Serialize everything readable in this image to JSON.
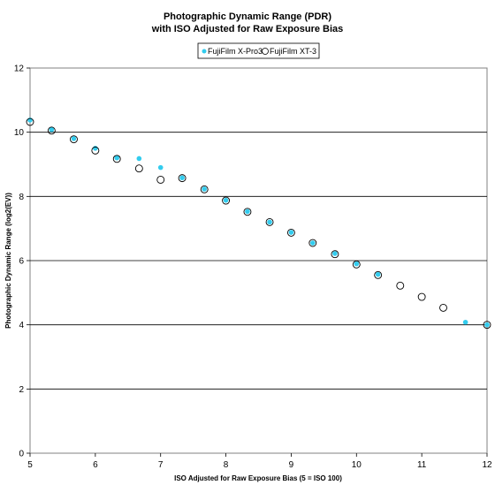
{
  "chart_data": {
    "type": "scatter",
    "title": [
      "Photographic Dynamic Range (PDR)",
      "with ISO Adjusted for Raw Exposure Bias"
    ],
    "xlabel": "ISO Adjusted for Raw Exposure Bias (5 = ISO 100)",
    "ylabel": "Photographic Dynamic Range (log2(EV))",
    "xlim": [
      5,
      12
    ],
    "ylim": [
      0,
      12
    ],
    "xticks": [
      5,
      6,
      7,
      8,
      9,
      10,
      11,
      12
    ],
    "yticks": [
      0,
      2,
      4,
      6,
      8,
      10,
      12
    ],
    "grid": "horizontal major lines",
    "legend_position": "top-center",
    "series": [
      {
        "name": "FujiFilm X-Pro3",
        "marker": "filled-circle",
        "color": "#33CCEE",
        "points": [
          [
            5.0,
            10.38
          ],
          [
            5.33,
            10.08
          ],
          [
            5.67,
            9.8
          ],
          [
            6.0,
            9.5
          ],
          [
            6.33,
            9.2
          ],
          [
            6.67,
            9.18
          ],
          [
            7.0,
            8.9
          ],
          [
            7.33,
            8.58
          ],
          [
            7.67,
            8.23
          ],
          [
            8.0,
            7.88
          ],
          [
            8.33,
            7.53
          ],
          [
            8.67,
            7.2
          ],
          [
            9.0,
            6.88
          ],
          [
            9.33,
            6.55
          ],
          [
            9.67,
            6.22
          ],
          [
            10.0,
            5.9
          ],
          [
            10.33,
            5.57
          ],
          [
            11.67,
            4.08
          ],
          [
            12.0,
            4.0
          ]
        ]
      },
      {
        "name": "FujiFilm XT-3",
        "marker": "open-circle",
        "color": "#000000",
        "points": [
          [
            5.0,
            10.32
          ],
          [
            5.33,
            10.05
          ],
          [
            5.67,
            9.78
          ],
          [
            6.0,
            9.43
          ],
          [
            6.33,
            9.17
          ],
          [
            6.67,
            8.87
          ],
          [
            7.0,
            8.52
          ],
          [
            7.33,
            8.57
          ],
          [
            7.67,
            8.22
          ],
          [
            8.0,
            7.87
          ],
          [
            8.33,
            7.52
          ],
          [
            8.67,
            7.2
          ],
          [
            9.0,
            6.87
          ],
          [
            9.33,
            6.55
          ],
          [
            9.67,
            6.2
          ],
          [
            10.0,
            5.88
          ],
          [
            10.33,
            5.55
          ],
          [
            10.67,
            5.22
          ],
          [
            11.0,
            4.87
          ],
          [
            11.33,
            4.53
          ],
          [
            12.0,
            4.0
          ]
        ]
      }
    ]
  }
}
